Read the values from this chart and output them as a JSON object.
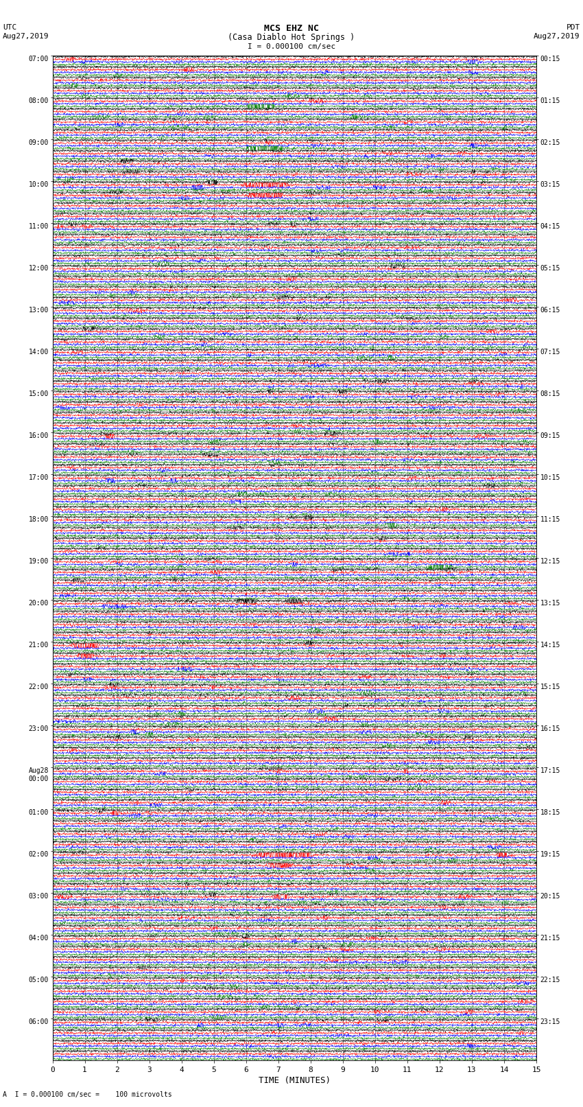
{
  "title_line1": "MCS EHZ NC",
  "title_line2": "(Casa Diablo Hot Springs )",
  "scale_label": "I = 0.000100 cm/sec",
  "bottom_label": "A  I = 0.000100 cm/sec =    100 microvolts",
  "utc_top": "UTC",
  "utc_date": "Aug27,2019",
  "pdt_top": "PDT",
  "pdt_date": "Aug27,2019",
  "xlabel": "TIME (MINUTES)",
  "xlim": [
    0,
    15
  ],
  "xticks": [
    0,
    1,
    2,
    3,
    4,
    5,
    6,
    7,
    8,
    9,
    10,
    11,
    12,
    13,
    14,
    15
  ],
  "bg_color": "#ffffff",
  "trace_colors": [
    "black",
    "red",
    "blue",
    "green"
  ],
  "left_times_utc": [
    "07:00",
    "08:00",
    "09:00",
    "10:00",
    "11:00",
    "12:00",
    "13:00",
    "14:00",
    "15:00",
    "16:00",
    "17:00",
    "18:00",
    "19:00",
    "20:00",
    "21:00",
    "22:00",
    "23:00",
    "Aug28\n00:00",
    "01:00",
    "02:00",
    "03:00",
    "04:00",
    "05:00",
    "06:00"
  ],
  "right_times_pdt": [
    "00:15",
    "01:15",
    "02:15",
    "03:15",
    "04:15",
    "05:15",
    "06:15",
    "07:15",
    "08:15",
    "09:15",
    "10:15",
    "11:15",
    "12:15",
    "13:15",
    "14:15",
    "15:15",
    "16:15",
    "17:15",
    "18:15",
    "19:15",
    "20:15",
    "21:15",
    "22:15",
    "23:15"
  ],
  "n_groups": 96,
  "traces_per_group": 4,
  "grid_color": "#888888",
  "grid_linewidth": 0.5,
  "trace_linewidth": 0.35,
  "base_amp": 0.06
}
